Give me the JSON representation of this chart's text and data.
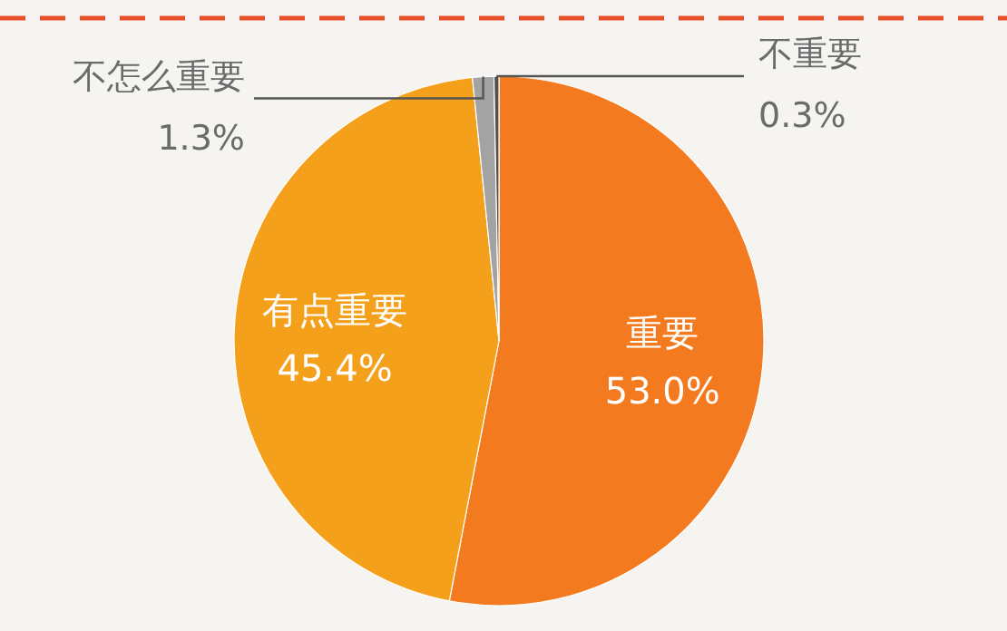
{
  "chart_data": {
    "type": "pie",
    "categories": [
      "重要",
      "有点重要",
      "不怎么重要",
      "不重要"
    ],
    "values": [
      53.0,
      45.4,
      1.3,
      0.3
    ],
    "value_labels": [
      "53.0%",
      "45.4%",
      "1.3%",
      "0.3%"
    ],
    "colors": [
      "#f47a1f",
      "#f5a01b",
      "#a3a3a3",
      "#505050"
    ]
  }
}
